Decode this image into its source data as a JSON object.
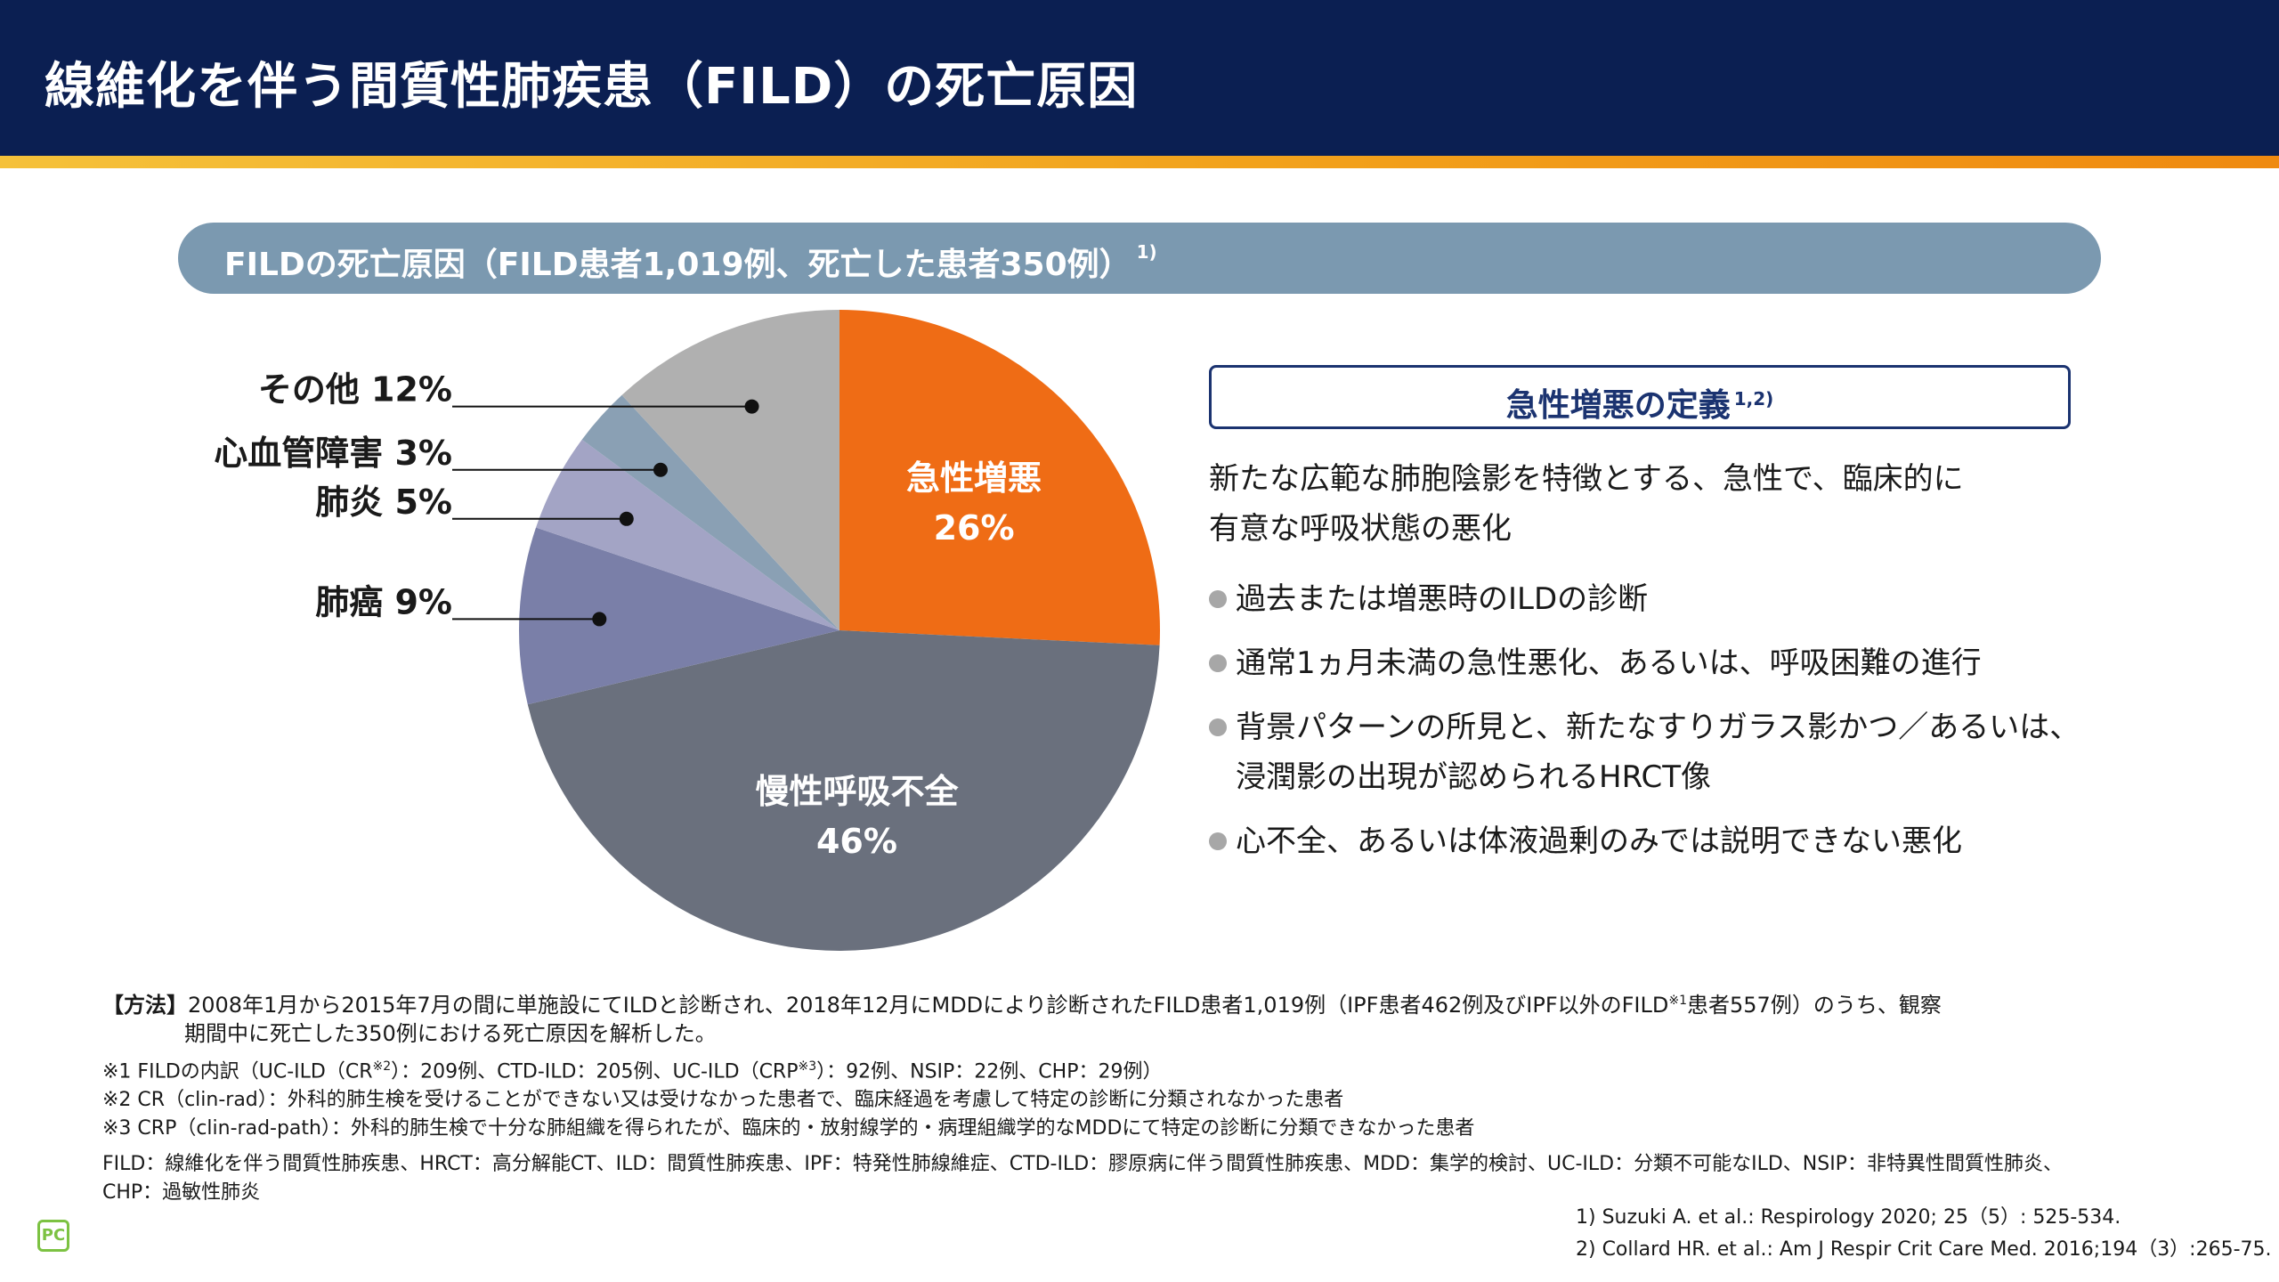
{
  "header": {
    "title": "線維化を伴う間質性肺疾患（FILD）の死亡原因"
  },
  "section": {
    "title": "FILDの死亡原因（FILD患者1,019例、死亡した患者350例）",
    "ref": "1)"
  },
  "colors": {
    "header_bg": "#0b1f52",
    "accent_orange": "#ef6c15",
    "slate": "#6a707d",
    "purple": "#7a7fa8",
    "lavender": "#a3a4c5",
    "blue_gray": "#8aa0b4",
    "gray": "#b0b0b0"
  },
  "chart_data": {
    "type": "pie",
    "title": "FILDの死亡原因",
    "slices": [
      {
        "label": "急性増悪",
        "value": 26,
        "display": "26%",
        "color": "#ef6c15",
        "label_inside": true
      },
      {
        "label": "慢性呼吸不全",
        "value": 46,
        "display": "46%",
        "color": "#6a707d",
        "label_inside": true
      },
      {
        "label": "肺癌",
        "value": 9,
        "display": "肺癌 9%",
        "color": "#7a7fa8",
        "label_inside": false
      },
      {
        "label": "肺炎",
        "value": 5,
        "display": "肺炎 5%",
        "color": "#a3a4c5",
        "label_inside": false
      },
      {
        "label": "心血管障害",
        "value": 3,
        "display": "心血管障害 3%",
        "color": "#8aa0b4",
        "label_inside": false
      },
      {
        "label": "その他",
        "value": 12,
        "display": "その他 12%",
        "color": "#b0b0b0",
        "label_inside": false
      }
    ]
  },
  "definition": {
    "title": "急性増悪の定義",
    "ref": "1,2)",
    "text_lines": [
      "新たな広範な肺胞陰影を特徴とする、急性で、臨床的に",
      "有意な呼吸状態の悪化"
    ],
    "bullets": [
      [
        "過去または増悪時のILDの診断"
      ],
      [
        "通常1ヵ月未満の急性悪化、あるいは、呼吸困難の進行"
      ],
      [
        "背景パターンの所見と、新たなすりガラス影かつ／あるいは、",
        "浸潤影の出現が認められるHRCT像"
      ],
      [
        "心不全、あるいは体液過剰のみでは説明できない悪化"
      ]
    ]
  },
  "method": {
    "head": "【方法】",
    "line1_a": "2008年1月から2015年7月の間に単施設にてILDと診断され、2018年12月にMDDにより診断されたFILD患者1,019例（IPF患者462例及びIPF以外のFILD",
    "line1_sup": "※1",
    "line1_b": "患者557例）のうち、観察",
    "line2": "期間中に死亡した350例における死亡原因を解析した。"
  },
  "notes": {
    "n1_a": "※1 FILDの内訳（UC-ILD（CR",
    "n1_sup1": "※2",
    "n1_b": "）：209例、CTD-ILD：205例、UC-ILD（CRP",
    "n1_sup2": "※3",
    "n1_c": "）：92例、NSIP：22例、CHP：29例）",
    "n2": "※2 CR（clin-rad）：外科的肺生検を受けることができない又は受けなかった患者で、臨床経過を考慮して特定の診断に分類されなかった患者",
    "n3": "※3 CRP（clin-rad-path）：外科的肺生検で十分な肺組織を得られたが、臨床的・放射線学的・病理組織学的なMDDにて特定の診断に分類できなかった患者"
  },
  "abbreviations": {
    "line1": "FILD：線維化を伴う間質性肺疾患、HRCT：高分解能CT、ILD：間質性肺疾患、IPF：特発性肺線維症、CTD-ILD：膠原病に伴う間質性肺疾患、MDD：集学的検討、UC-ILD：分類不可能なILD、NSIP：非特異性間質性肺炎、",
    "line2": "CHP：過敏性肺炎"
  },
  "references": [
    "1) Suzuki A. et al.: Respirology 2020; 25（5）: 525-534.",
    "2) Collard HR. et al.: Am J Respir Crit Care Med. 2016;194（3）:265-75."
  ],
  "logo": {
    "text": "PC"
  }
}
